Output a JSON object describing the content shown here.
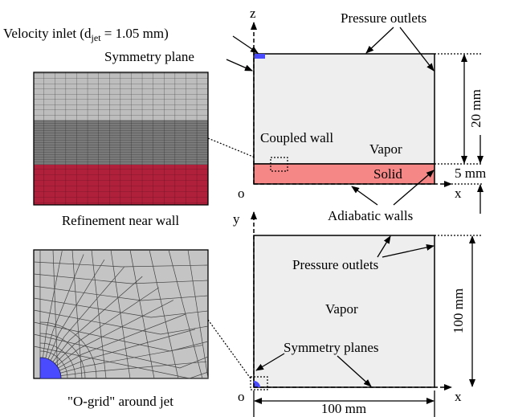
{
  "labels": {
    "velocity_inlet": {
      "prefix": "Velocity inlet (d",
      "subscript": "jet",
      "suffix": " = 1.05 mm)"
    },
    "symmetry_plane": "Symmetry plane",
    "pressure_outlets_top": "Pressure outlets",
    "z_axis": "z",
    "origin_top": "o",
    "x_axis_top": "x",
    "y_axis": "y",
    "origin_bottom": "o",
    "x_axis_bottom": "x",
    "dim_20": "20 mm",
    "dim_5": "5 mm",
    "dim_100_vertical": "100 mm",
    "dim_100_horizontal": "100 mm",
    "coupled_wall": "Coupled wall",
    "vapor_top": "Vapor",
    "solid": "Solid",
    "adiabatic_walls": "Adiabatic walls",
    "refinement_caption": "Refinement near wall",
    "pressure_outlets_bottom": "Pressure outlets",
    "vapor_bottom": "Vapor",
    "symmetry_planes": "Symmetry planes",
    "ogrid_caption": "\"O-grid\" around jet"
  }
}
